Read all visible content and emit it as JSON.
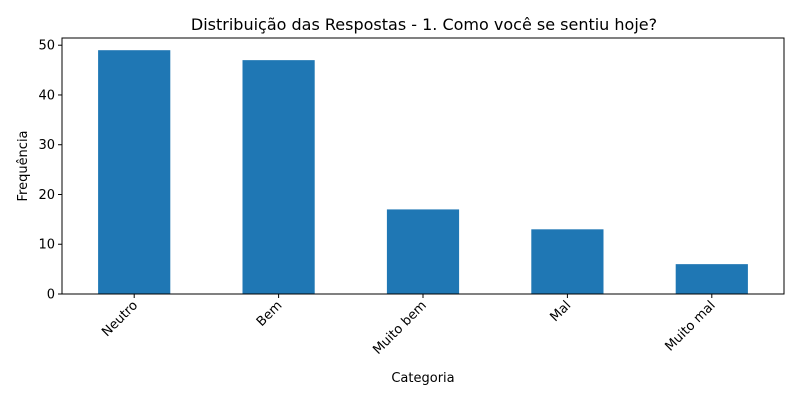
{
  "chart_data": {
    "type": "bar",
    "title": "Distribuição das Respostas - 1. Como você se sentiu hoje?",
    "xlabel": "Categoria",
    "ylabel": "Frequência",
    "categories": [
      "Neutro",
      "Bem",
      "Muito bem",
      "Mal",
      "Muito mal"
    ],
    "values": [
      49,
      47,
      17,
      13,
      6
    ],
    "ylim": [
      0,
      51.45
    ],
    "yticks": [
      0,
      10,
      20,
      30,
      40,
      50
    ],
    "grid": false,
    "legend": "none",
    "bar_color": "#1f77b4"
  }
}
